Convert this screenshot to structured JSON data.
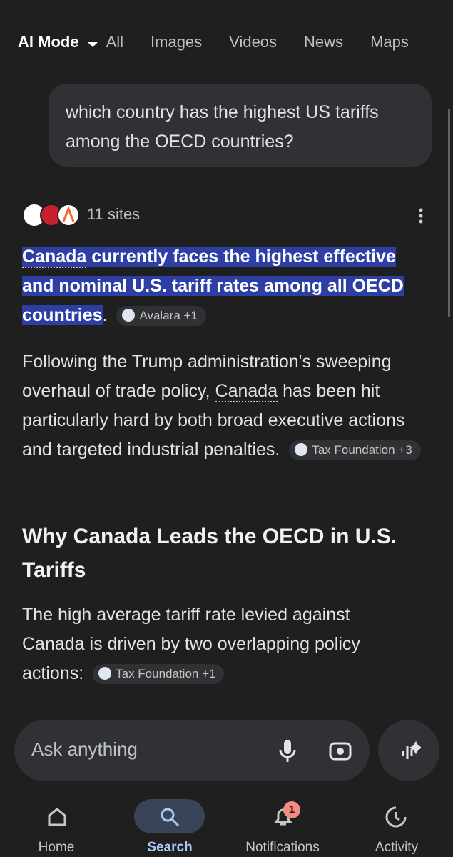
{
  "tabs": [
    "AI Mode",
    "All",
    "Images",
    "Videos",
    "News",
    "Maps"
  ],
  "query": "which country has the highest US tariffs among the OECD countries?",
  "sources": "11 sites",
  "answer": {
    "highlight": [
      "Canada",
      "currently faces the highest effective and nominal U.S. tariff rates among all OECD countries"
    ],
    "end": ".",
    "chip": "Avalara +1"
  },
  "paragraph1": {
    "parts": [
      "Following the Trump administration's sweeping overhaul of trade policy,",
      "Canada",
      "has been hit particularly hard by both broad executive actions and targeted industrial penalties."
    ],
    "chip": "Tax Foundation +3"
  },
  "heading": "Why Canada Leads the OECD in U.S. Tariffs",
  "paragraph2": {
    "text": "The high average tariff rate levied against Canada is driven by two overlapping policy actions:",
    "chip": "Tax Foundation +1"
  },
  "input": {
    "placeholder": "Ask anything"
  },
  "nav": {
    "items": [
      "Home",
      "Search",
      "Notifications",
      "Activity"
    ],
    "badge": "1"
  }
}
